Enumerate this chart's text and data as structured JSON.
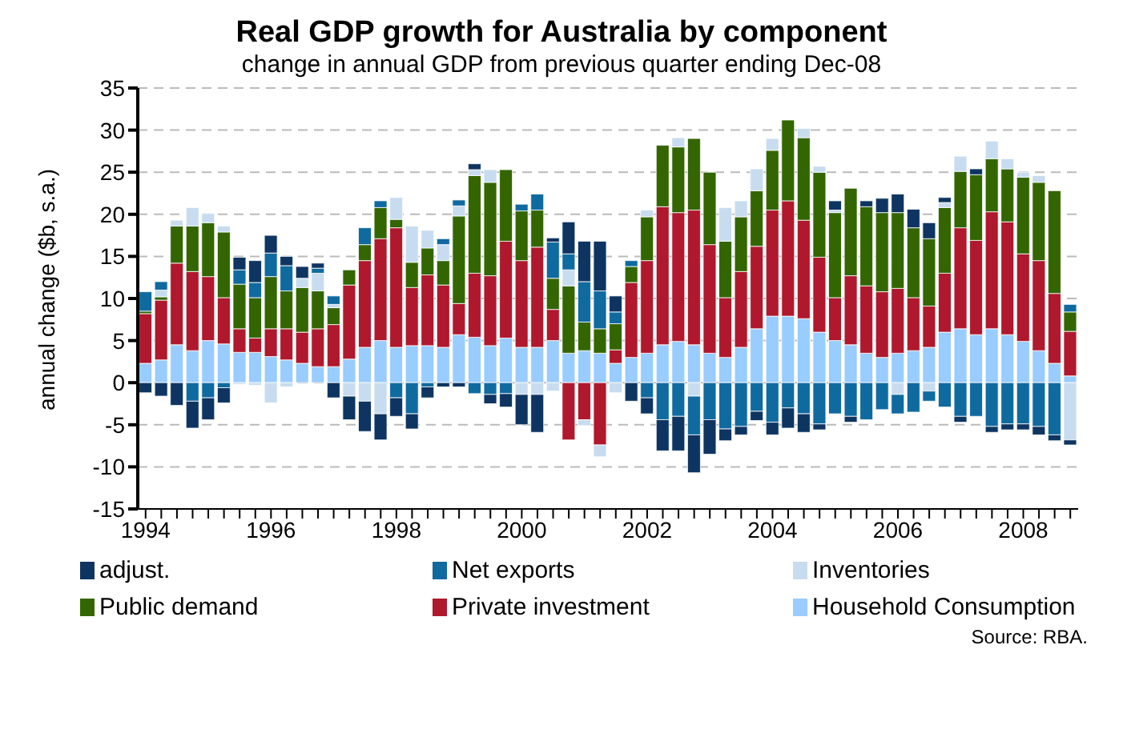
{
  "chart_data": {
    "type": "bar",
    "title": "Real GDP growth for Australia by component",
    "subtitle": "change in annual GDP from previous quarter ending Dec-08",
    "ylabel": "annual change ($b, s.a.)",
    "categories": [
      "1994",
      null,
      null,
      null,
      null,
      null,
      null,
      null,
      "1996",
      null,
      null,
      null,
      null,
      null,
      null,
      null,
      "1998",
      null,
      null,
      null,
      null,
      null,
      null,
      null,
      "2000",
      null,
      null,
      null,
      null,
      null,
      null,
      null,
      "2002",
      null,
      null,
      null,
      null,
      null,
      null,
      null,
      "2004",
      null,
      null,
      null,
      null,
      null,
      null,
      null,
      "2006",
      null,
      null,
      null,
      null,
      null,
      null,
      null,
      "2008",
      null,
      null,
      null
    ],
    "stacked": true,
    "ylim": [
      -15,
      35
    ],
    "yticks": [
      -15,
      -10,
      -5,
      0,
      5,
      10,
      15,
      20,
      25,
      30,
      35
    ],
    "grid": "y",
    "legend": "bottom",
    "series": [
      {
        "name": "Household Consumption",
        "color": "#99ccff",
        "values": [
          2.3,
          2.7,
          4.5,
          3.8,
          5.0,
          4.6,
          3.6,
          3.6,
          3.1,
          2.7,
          2.3,
          1.9,
          1.9,
          2.8,
          4.2,
          5.0,
          4.2,
          4.4,
          4.4,
          4.2,
          5.7,
          5.4,
          4.4,
          5.3,
          4.2,
          4.2,
          5.0,
          3.5,
          3.8,
          3.5,
          2.3,
          3.0,
          3.5,
          4.5,
          4.9,
          4.5,
          3.5,
          3.0,
          4.2,
          6.4,
          7.9,
          7.9,
          7.6,
          6.0,
          5.0,
          4.5,
          3.5,
          3.0,
          3.5,
          3.8,
          4.2,
          6.0,
          6.4,
          5.7,
          6.4,
          5.7,
          4.9,
          3.8,
          2.3,
          0.8
        ]
      },
      {
        "name": "Private investment",
        "color": "#b0182d",
        "values": [
          5.9,
          7.1,
          9.7,
          9.4,
          7.6,
          5.5,
          2.8,
          1.7,
          3.3,
          3.7,
          3.7,
          4.5,
          5.0,
          8.8,
          10.3,
          12.1,
          14.2,
          6.9,
          8.4,
          7.4,
          3.7,
          7.6,
          8.3,
          11.5,
          10.3,
          11.9,
          3.7,
          -6.8,
          -4.4,
          -7.4,
          1.6,
          8.9,
          11.0,
          16.4,
          15.3,
          16.0,
          12.9,
          7.1,
          9.0,
          9.8,
          12.6,
          13.7,
          11.7,
          8.9,
          5.1,
          8.2,
          8.0,
          7.8,
          7.7,
          6.3,
          4.9,
          7.0,
          12.0,
          11.2,
          13.9,
          13.4,
          10.4,
          10.7,
          8.3,
          5.3
        ]
      },
      {
        "name": "Public demand",
        "color": "#336600",
        "values": [
          0.3,
          0.4,
          4.4,
          5.4,
          6.4,
          7.8,
          5.3,
          4.8,
          6.2,
          4.5,
          5.3,
          4.5,
          2.0,
          1.8,
          1.9,
          3.7,
          1.0,
          3.0,
          3.2,
          2.9,
          10.4,
          11.6,
          11.1,
          8.5,
          5.9,
          4.4,
          3.7,
          8.0,
          3.4,
          2.9,
          3.1,
          1.9,
          5.2,
          7.3,
          7.8,
          8.5,
          8.6,
          6.7,
          6.5,
          6.6,
          7.1,
          9.6,
          9.8,
          10.1,
          10.1,
          10.4,
          9.4,
          9.4,
          9.0,
          8.3,
          8.0,
          7.8,
          6.7,
          7.8,
          6.3,
          6.3,
          9.1,
          9.3,
          12.2,
          2.3
        ]
      },
      {
        "name": "Inventories",
        "color": "#c8dcf0",
        "values": [
          0,
          0.8,
          0.7,
          2.2,
          1.1,
          0.7,
          -0.2,
          -0.3,
          -2.4,
          -0.5,
          1.1,
          2.1,
          0.4,
          -1.6,
          -2.2,
          -3.7,
          2.6,
          4.3,
          2.1,
          1.9,
          1.2,
          0.7,
          1.5,
          0,
          -1.4,
          -1.4,
          -1.0,
          1.9,
          -0.7,
          -1.4,
          -1.2,
          0,
          0.8,
          0,
          1.1,
          -1.6,
          0,
          4.0,
          1.9,
          2.6,
          1.4,
          0,
          1.1,
          0.7,
          0.3,
          0,
          0,
          0,
          -1.4,
          0,
          -1.0,
          0.6,
          1.8,
          0,
          2.1,
          1.2,
          0.6,
          0.8,
          0,
          -6.8
        ]
      },
      {
        "name": "Net exports",
        "color": "#0f6aa0",
        "values": [
          2.3,
          1.0,
          0,
          -2.2,
          -1.8,
          -0.6,
          1.7,
          1.8,
          2.8,
          3.0,
          0,
          0.6,
          1.0,
          0,
          2.0,
          0.8,
          -1.8,
          -3.7,
          -0.5,
          0.7,
          0.7,
          -1.3,
          -1.4,
          -1.3,
          0.8,
          1.9,
          4.3,
          1.9,
          4.8,
          4.5,
          1.4,
          0.7,
          -1.8,
          -4.4,
          -4.0,
          -4.6,
          -4.4,
          -5.5,
          -5.2,
          -3.4,
          -4.7,
          -3.0,
          -3.7,
          -4.9,
          -3.7,
          -4.0,
          -4.4,
          -3.2,
          -2.3,
          -3.5,
          -1.2,
          -2.9,
          -4.0,
          -4.0,
          -5.2,
          -4.9,
          -4.9,
          -5.2,
          -6.2,
          0.9
        ]
      },
      {
        "name": "adjust.",
        "color": "#0e3561",
        "values": [
          -1.2,
          -1.6,
          -2.7,
          -3.2,
          -2.6,
          -1.8,
          1.5,
          2.6,
          2.1,
          1.1,
          1.4,
          0.6,
          -1.8,
          -2.8,
          -3.6,
          -3.1,
          -2.2,
          -1.8,
          -1.3,
          -0.5,
          -0.5,
          0.7,
          -1.1,
          -1.6,
          -3.6,
          -4.5,
          0.5,
          3.8,
          4.8,
          5.9,
          1.9,
          -2.2,
          -1.9,
          -3.7,
          -4.1,
          -4.5,
          -4.1,
          -1.4,
          -1.0,
          -1.1,
          -1.5,
          -2.4,
          -2.2,
          -0.7,
          1.1,
          -0.7,
          0.7,
          1.7,
          2.2,
          2.2,
          1.9,
          0.6,
          -0.7,
          0.7,
          -0.7,
          -0.7,
          -0.7,
          -1.0,
          -0.7,
          -0.6
        ]
      }
    ],
    "annotations": [
      "Source: RBA."
    ]
  }
}
